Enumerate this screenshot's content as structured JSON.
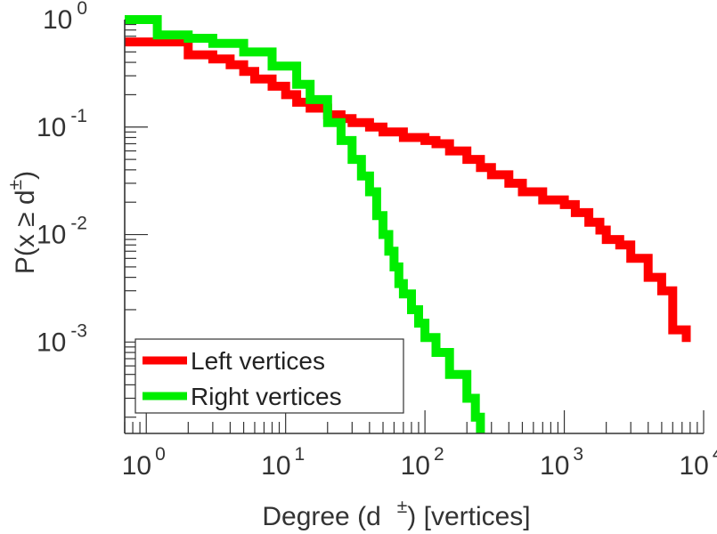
{
  "chart_data": {
    "type": "line",
    "scale": "log-log",
    "xlim": [
      0.7,
      10000
    ],
    "ylim": [
      0.0001412,
      1
    ],
    "xlabel": {
      "main": "Degree (d",
      "sup": "±",
      "after": ") [vertices]"
    },
    "ylabel": {
      "main": "P(x ≥ d",
      "sup": "±",
      "after": ")"
    },
    "x_ticks": [
      {
        "value": 1,
        "base": "10",
        "exp": "0"
      },
      {
        "value": 10,
        "base": "10",
        "exp": "1"
      },
      {
        "value": 100,
        "base": "10",
        "exp": "2"
      },
      {
        "value": 1000,
        "base": "10",
        "exp": "3"
      },
      {
        "value": 10000,
        "base": "10",
        "exp": "4"
      }
    ],
    "y_ticks": [
      {
        "value": 1,
        "base": "10",
        "exp": "0"
      },
      {
        "value": 0.1,
        "base": "10",
        "exp": "-1"
      },
      {
        "value": 0.01,
        "base": "10",
        "exp": "-2"
      },
      {
        "value": 0.001,
        "base": "10",
        "exp": "-3"
      }
    ],
    "legend": {
      "position": "bottom-left"
    },
    "series": [
      {
        "name": "Left vertices",
        "color": "#ff0000",
        "x": [
          0.7,
          1,
          2,
          3,
          4,
          5,
          6,
          8,
          10,
          12,
          15,
          20,
          25,
          30,
          40,
          50,
          70,
          100,
          120,
          150,
          200,
          250,
          300,
          400,
          500,
          700,
          1000,
          1200,
          1500,
          1800,
          2000,
          2500,
          3000,
          4000,
          5000,
          6000,
          7500
        ],
        "y": [
          0.62,
          0.62,
          0.47,
          0.43,
          0.38,
          0.33,
          0.28,
          0.24,
          0.2,
          0.17,
          0.15,
          0.13,
          0.12,
          0.11,
          0.1,
          0.09,
          0.08,
          0.075,
          0.07,
          0.06,
          0.05,
          0.042,
          0.036,
          0.03,
          0.025,
          0.021,
          0.019,
          0.016,
          0.013,
          0.011,
          0.009,
          0.008,
          0.006,
          0.004,
          0.003,
          0.0013,
          0.001
        ]
      },
      {
        "name": "Right vertices",
        "color": "#00ee00",
        "x": [
          0.7,
          1,
          1.2,
          2,
          3,
          5,
          8,
          12,
          15,
          20,
          25,
          30,
          35,
          40,
          45,
          50,
          55,
          60,
          65,
          70,
          80,
          90,
          100,
          120,
          150,
          180,
          200,
          230,
          250
        ],
        "y": [
          1,
          1,
          0.72,
          0.67,
          0.6,
          0.5,
          0.37,
          0.25,
          0.18,
          0.11,
          0.075,
          0.05,
          0.035,
          0.025,
          0.015,
          0.01,
          0.007,
          0.005,
          0.0035,
          0.0028,
          0.002,
          0.0015,
          0.0011,
          0.0008,
          0.0005,
          0.0005,
          0.0003,
          0.0002,
          0.0001412
        ]
      }
    ]
  }
}
